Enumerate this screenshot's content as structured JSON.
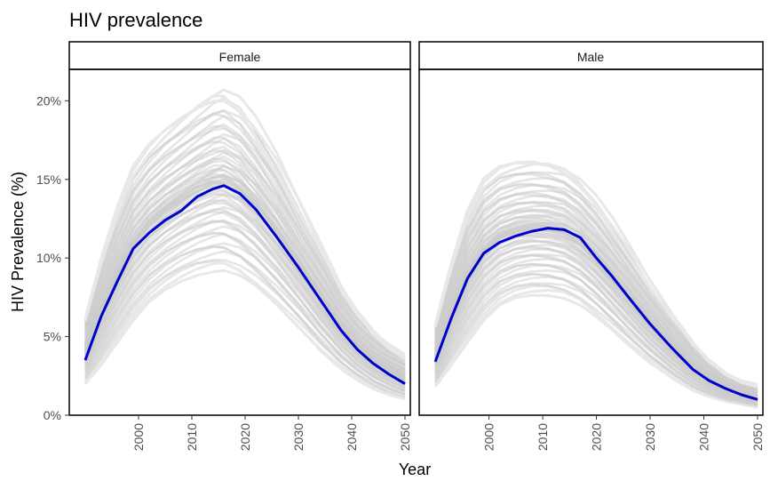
{
  "chart_data": {
    "type": "line",
    "title": "HIV prevalence",
    "xlabel": "Year",
    "ylabel": "HIV Prevalence (%)",
    "xlim": [
      1987,
      2051
    ],
    "ylim": [
      0,
      22
    ],
    "x_ticks": [
      2000,
      2010,
      2020,
      2030,
      2040,
      2050
    ],
    "x_tick_labels": [
      "2000",
      "2010",
      "2020",
      "2030",
      "2040",
      "2050"
    ],
    "y_ticks": [
      0,
      5,
      10,
      15,
      20
    ],
    "y_tick_labels": [
      "0%",
      "5%",
      "10%",
      "15%",
      "20%"
    ],
    "grid": false,
    "simulation_color": "#cccccc",
    "mean_color": "#0000cc",
    "panels": [
      {
        "name": "Female",
        "x": [
          1990,
          1993,
          1996,
          1999,
          2002,
          2005,
          2008,
          2011,
          2014,
          2016,
          2019,
          2022,
          2026,
          2030,
          2034,
          2038,
          2041,
          2044,
          2047,
          2050
        ],
        "mean": [
          3.5,
          6.3,
          8.5,
          10.6,
          11.6,
          12.4,
          13.0,
          13.9,
          14.4,
          14.6,
          14.1,
          13.1,
          11.3,
          9.4,
          7.4,
          5.4,
          4.2,
          3.3,
          2.6,
          2.0
        ],
        "envelope_upper": [
          6.2,
          10.0,
          13.2,
          15.8,
          17.2,
          18.2,
          19.0,
          19.8,
          20.5,
          20.7,
          20.0,
          18.6,
          16.3,
          13.6,
          10.9,
          8.2,
          6.6,
          5.4,
          4.5,
          3.8
        ],
        "envelope_lower": [
          2.0,
          3.2,
          4.6,
          6.0,
          7.2,
          8.0,
          8.6,
          9.0,
          9.2,
          9.2,
          8.8,
          8.1,
          6.9,
          5.6,
          4.2,
          3.0,
          2.3,
          1.7,
          1.3,
          1.0
        ]
      },
      {
        "name": "Male",
        "x": [
          1990,
          1993,
          1996,
          1999,
          2002,
          2005,
          2008,
          2011,
          2014,
          2017,
          2020,
          2023,
          2026,
          2030,
          2034,
          2038,
          2041,
          2044,
          2047,
          2050
        ],
        "mean": [
          3.4,
          6.2,
          8.7,
          10.3,
          11.0,
          11.4,
          11.7,
          11.9,
          11.8,
          11.3,
          10.0,
          8.8,
          7.5,
          5.8,
          4.3,
          2.9,
          2.2,
          1.7,
          1.3,
          1.0
        ],
        "envelope_upper": [
          5.8,
          9.7,
          13.0,
          15.0,
          15.8,
          16.1,
          16.2,
          16.1,
          15.8,
          15.0,
          13.8,
          12.3,
          10.7,
          8.5,
          6.4,
          4.6,
          3.5,
          2.7,
          2.2,
          1.9
        ],
        "envelope_lower": [
          1.8,
          3.2,
          4.6,
          6.0,
          7.0,
          7.5,
          7.7,
          7.7,
          7.5,
          7.0,
          6.2,
          5.3,
          4.4,
          3.3,
          2.4,
          1.6,
          1.2,
          0.9,
          0.7,
          0.5
        ]
      }
    ]
  }
}
